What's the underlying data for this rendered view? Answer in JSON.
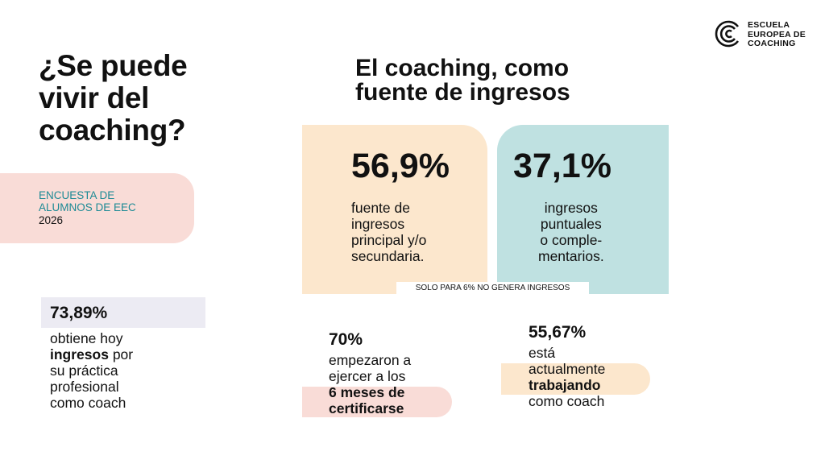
{
  "logo": {
    "text": "ESCUELA\nEUROPEA DE\nCOACHING",
    "icon": "eec-logo-icon"
  },
  "main_question": "¿Se puede\nvivir del\ncoaching?",
  "survey": {
    "line1": "ENCUESTA DE\nALUMNOS DE EEC",
    "year": "2026"
  },
  "section_title": "El coaching, como\nfuente de ingresos",
  "cards": [
    {
      "value": "56,9%",
      "text": "fuente de\ningresos\nprincipal y/o\nsecundaria."
    },
    {
      "value": "37,1%",
      "text": "ingresos\npuntuales\no comple-\nmentarios."
    }
  ],
  "note": "SOLO PARA 6% NO GENERA INGRESOS",
  "stat1": {
    "value": "73,89%",
    "pre": "obtiene hoy",
    "bold": "ingresos",
    "post": " por",
    "rest1": "su práctica",
    "rest2": "profesional",
    "rest3": "como coach"
  },
  "stat2": {
    "value": "70%",
    "l1": "empezaron a",
    "l2": "ejercer a los",
    "b1": "6 meses de",
    "b2": "certificarse"
  },
  "stat3": {
    "value": "55,67%",
    "l1": "está",
    "l2": "actualmente",
    "b1": "trabajando",
    "l3": "como coach"
  },
  "colors": {
    "teal": "#1d8a95",
    "peach": "#fce7cd",
    "pink": "#f9dcd7",
    "mint": "#bfe1e1",
    "lavender": "#ecebf3"
  }
}
